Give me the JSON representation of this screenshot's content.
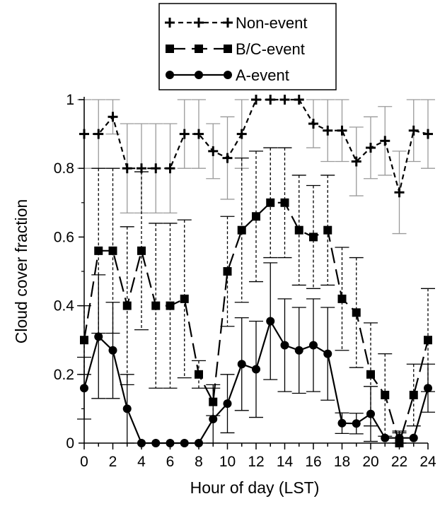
{
  "chart_data": {
    "type": "line",
    "xlabel": "Hour of day (LST)",
    "ylabel": "Cloud cover fraction",
    "xlim": [
      0,
      24
    ],
    "ylim": [
      0,
      1
    ],
    "x_ticks": [
      0,
      2,
      4,
      6,
      8,
      10,
      12,
      14,
      16,
      18,
      20,
      22,
      24
    ],
    "y_ticks": [
      0,
      0.2,
      0.4,
      0.6,
      0.8,
      1
    ],
    "y_tick_labels": [
      "0",
      "0.2",
      "0.4",
      "0.6",
      "0.8",
      "1"
    ],
    "grid": false,
    "legend_position": "top-center",
    "x": [
      0,
      1,
      2,
      3,
      4,
      5,
      6,
      7,
      8,
      9,
      10,
      11,
      12,
      13,
      14,
      15,
      16,
      17,
      18,
      19,
      20,
      21,
      22,
      23,
      24
    ],
    "series": [
      {
        "name": "Non-event",
        "marker": "plus",
        "line_style": "short-dash",
        "error_bar_color": "#9a9a9a",
        "values": [
          0.9,
          0.9,
          0.95,
          0.8,
          0.8,
          0.8,
          0.8,
          0.9,
          0.9,
          0.85,
          0.83,
          0.9,
          1.0,
          1.0,
          1.0,
          1.0,
          0.93,
          0.91,
          0.91,
          0.82,
          0.86,
          0.88,
          0.73,
          0.91,
          0.9
        ],
        "err": [
          0.1,
          0.1,
          0.05,
          0.13,
          0.13,
          0.13,
          0.13,
          0.1,
          0.1,
          0.08,
          0.12,
          0.1,
          0.0,
          0.0,
          0.0,
          0.0,
          0.07,
          0.09,
          0.09,
          0.1,
          0.09,
          0.1,
          0.12,
          0.09,
          0.1
        ]
      },
      {
        "name": "B/C-event",
        "marker": "square",
        "line_style": "long-dash",
        "error_bar_style": "dashed",
        "values": [
          0.3,
          0.56,
          0.56,
          0.4,
          0.56,
          0.4,
          0.4,
          0.42,
          0.2,
          0.12,
          0.5,
          0.62,
          0.66,
          0.7,
          0.7,
          0.62,
          0.6,
          0.62,
          0.42,
          0.38,
          0.2,
          0.14,
          0.0,
          0.14,
          0.3
        ],
        "err": [
          0.1,
          0.24,
          0.24,
          0.23,
          0.23,
          0.24,
          0.24,
          0.23,
          0.04,
          0.04,
          0.16,
          0.21,
          0.19,
          0.16,
          0.16,
          0.16,
          0.15,
          0.16,
          0.15,
          0.16,
          0.15,
          0.12,
          0.03,
          0.09,
          0.15
        ]
      },
      {
        "name": "A-event",
        "marker": "circle",
        "line_style": "solid",
        "error_bar_style": "solid",
        "values": [
          0.16,
          0.31,
          0.27,
          0.1,
          0.0,
          0.0,
          0.0,
          0.0,
          0.0,
          0.07,
          0.115,
          0.23,
          0.215,
          0.355,
          0.285,
          0.27,
          0.285,
          0.26,
          0.058,
          0.057,
          0.085,
          0.015,
          0.015,
          0.015,
          0.16
        ],
        "err": [
          0.09,
          0.18,
          0.14,
          0.1,
          0.0,
          0.0,
          0.0,
          0.0,
          0.0,
          0.1,
          0.085,
          0.135,
          0.14,
          0.17,
          0.135,
          0.125,
          0.135,
          0.135,
          0.03,
          0.03,
          0.08,
          0.0,
          0.02,
          0.0,
          0.07
        ]
      }
    ]
  }
}
